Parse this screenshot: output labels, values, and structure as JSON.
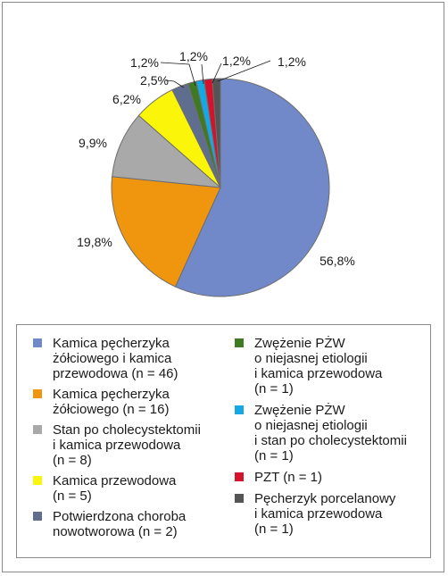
{
  "chart_data": {
    "type": "pie",
    "slices": [
      {
        "value": 56.8,
        "label": "56,8%",
        "color": "#7189c8"
      },
      {
        "value": 19.8,
        "label": "19,8%",
        "color": "#f0960e"
      },
      {
        "value": 9.9,
        "label": "9,9%",
        "color": "#a9a9a9"
      },
      {
        "value": 6.2,
        "label": "6,2%",
        "color": "#fbf50a"
      },
      {
        "value": 2.5,
        "label": "2,5%",
        "color": "#5f6e8e"
      },
      {
        "value": 1.2,
        "label": "1,2%",
        "color": "#3f7a23"
      },
      {
        "value": 1.2,
        "label": "1,2%",
        "color": "#15a8e2"
      },
      {
        "value": 1.2,
        "label": "1,2%",
        "color": "#d5122b"
      },
      {
        "value": 1.2,
        "label": "1,2%",
        "color": "#555555"
      }
    ],
    "legend": {
      "left": [
        {
          "label": "Kamica pęcherzyka\nżółciowego i kamica\nprzewodowa (n = 46)",
          "color": "#7189c8"
        },
        {
          "label": "Kamica pęcherzyka\nżółciowego (n = 16)",
          "color": "#f0960e"
        },
        {
          "label": "Stan po cholecystektomii\ni kamica przewodowa\n(n = 8)",
          "color": "#a9a9a9"
        },
        {
          "label": "Kamica przewodowa\n(n = 5)",
          "color": "#fbf50a"
        },
        {
          "label": "Potwierdzona choroba\nnowotworowa (n = 2)",
          "color": "#5f6e8e"
        }
      ],
      "right": [
        {
          "label": "Zwężenie PŻW\no niejasnej etiologii\ni kamica przewodowa\n(n = 1)",
          "color": "#3f7a23"
        },
        {
          "label": "Zwężenie PŻW\no niejasnej etiologii\ni stan po cholecystektomii\n(n = 1)",
          "color": "#15a8e2"
        },
        {
          "label": "PZT (n = 1)",
          "color": "#d5122b"
        },
        {
          "label": "Pęcherzyk porcelanowy\ni kamica przewodowa\n(n = 1)",
          "color": "#555555"
        }
      ]
    }
  }
}
